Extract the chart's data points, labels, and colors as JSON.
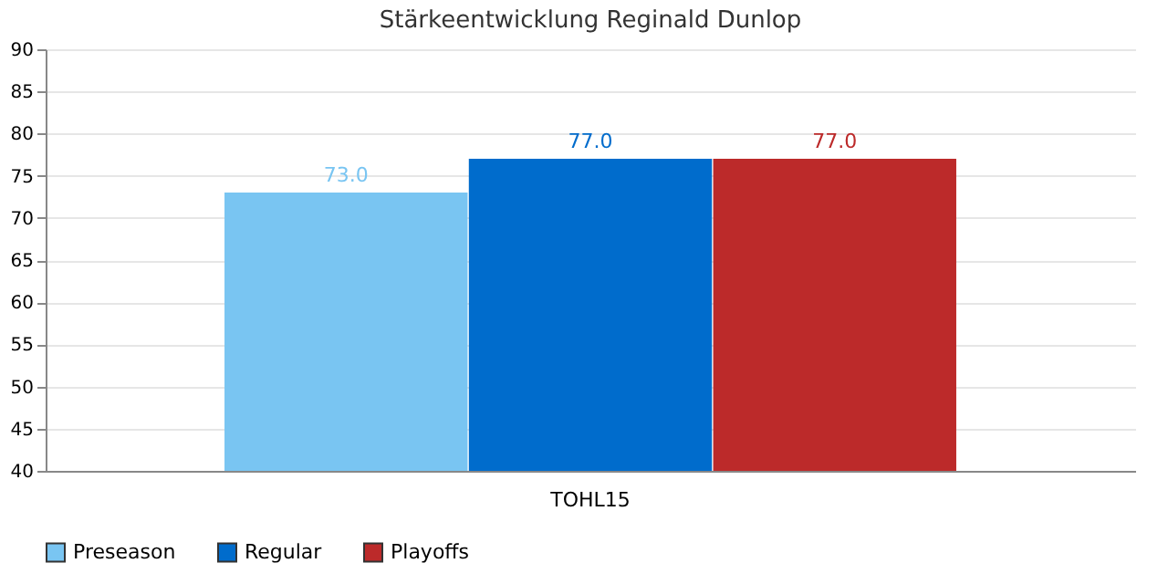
{
  "chart_data": {
    "type": "bar",
    "title": "Stärkeentwicklung Reginald Dunlop",
    "categories": [
      "TOHL15"
    ],
    "series": [
      {
        "name": "Preseason",
        "color": "#79c5f2",
        "values": [
          73.0
        ],
        "value_labels": [
          "73.0"
        ]
      },
      {
        "name": "Regular",
        "color": "#006ccc",
        "values": [
          77.0
        ],
        "value_labels": [
          "77.0"
        ]
      },
      {
        "name": "Playoffs",
        "color": "#bc2a2a",
        "values": [
          77.0
        ],
        "value_labels": [
          "77.0"
        ]
      }
    ],
    "ylim": [
      40,
      90
    ],
    "yticks": [
      40,
      45,
      50,
      55,
      60,
      65,
      70,
      75,
      80,
      85,
      90
    ],
    "grid": "y",
    "legend": "bottom"
  }
}
